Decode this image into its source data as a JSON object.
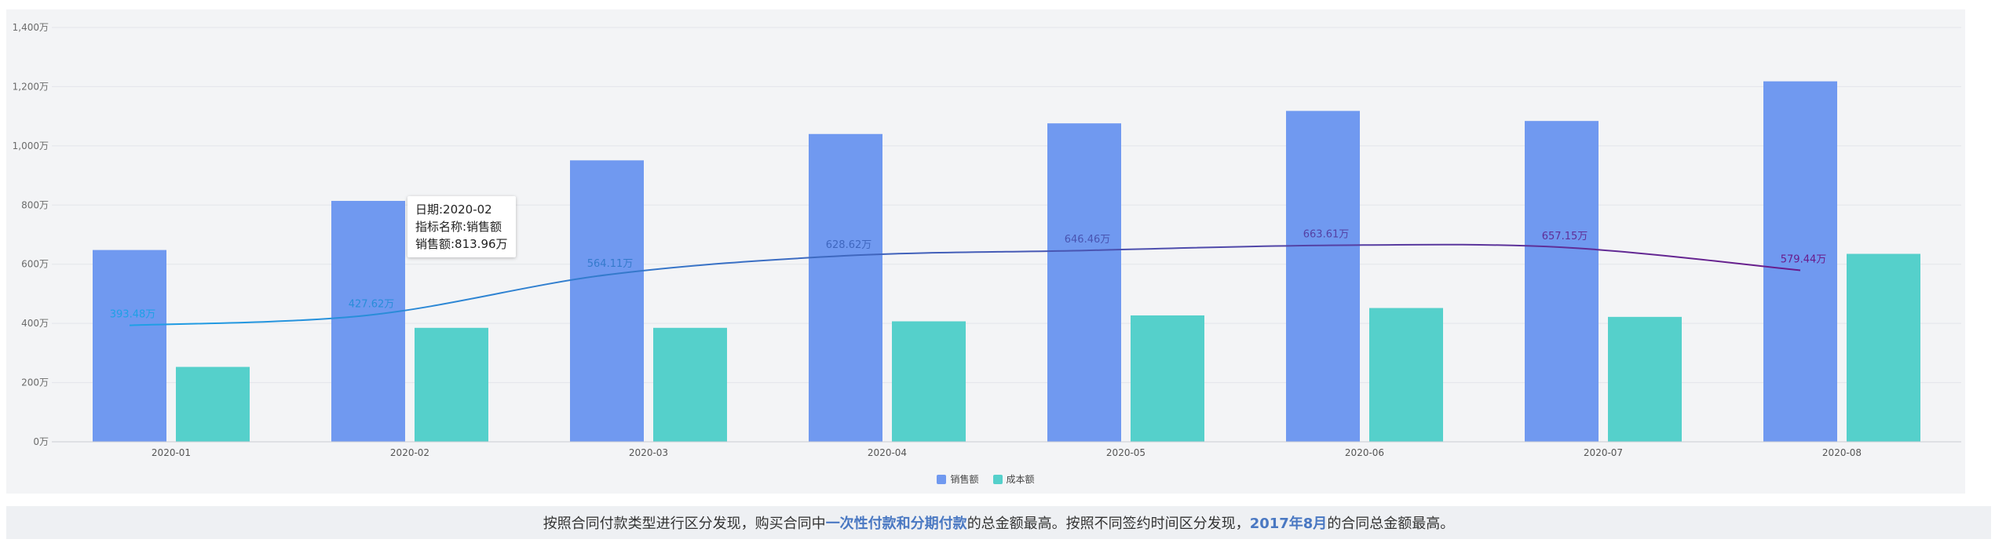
{
  "chart_data": {
    "type": "bar",
    "categories": [
      "2020-01",
      "2020-02",
      "2020-03",
      "2020-04",
      "2020-05",
      "2020-06",
      "2020-07",
      "2020-08"
    ],
    "series": [
      {
        "name": "销售额",
        "values": [
          648,
          813.96,
          951,
          1040,
          1076,
          1118,
          1084,
          1218
        ],
        "color": "#7099f0"
      },
      {
        "name": "成本额",
        "values": [
          253,
          385,
          385,
          407,
          427,
          452,
          422,
          635
        ],
        "color": "#55d0cb"
      }
    ],
    "line": {
      "values": [
        393.48,
        427.62,
        564.11,
        628.62,
        646.46,
        663.61,
        657.15,
        579.44
      ],
      "labels": [
        "393.48万",
        "427.62万",
        "564.11万",
        "628.62万",
        "646.46万",
        "663.61万",
        "657.15万",
        "579.44万"
      ],
      "color_start": "#1ea0e6",
      "color_end": "#6a1b8a"
    },
    "ylim": [
      0,
      1400
    ],
    "yticks": [
      "0万",
      "200万",
      "400万",
      "600万",
      "800万",
      "1,000万",
      "1,200万",
      "1,400万"
    ],
    "grid": true,
    "legend_position": "bottom-center"
  },
  "tooltip": {
    "date": "日期:2020-02",
    "metric": "指标名称:销售额",
    "value": "销售额:813.96万"
  },
  "summary": {
    "part1": "按照合同付款类型进行区分发现，购买合同中",
    "highlight1": "一次性付款和分期付款",
    "part2": "的总金额最高。按照不同签约时间区分发现，",
    "highlight2": "2017年8月",
    "part3": "的合同总金额最高。"
  }
}
